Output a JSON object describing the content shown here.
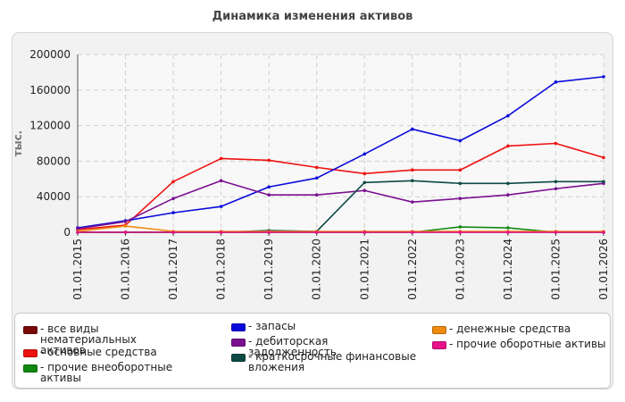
{
  "chart_data": {
    "type": "line",
    "title": "Динамика изменения активов",
    "xlabel": "",
    "ylabel": "тыс.",
    "categories": [
      "01.01.2015",
      "01.01.2016",
      "01.01.2017",
      "01.01.2018",
      "01.01.2019",
      "01.01.2020",
      "01.01.2021",
      "01.01.2022",
      "01.01.2023",
      "01.01.2024",
      "01.01.2025",
      "01.01.2026"
    ],
    "ylim": [
      0,
      200000
    ],
    "yticks": [
      "0",
      "40000",
      "80000",
      "120000",
      "160000",
      "200000"
    ],
    "grid": true,
    "legend_position": "bottom",
    "series": [
      {
        "name": "все виды нематериальных активов",
        "color": "#7a0a0a",
        "values": [
          0,
          0,
          0,
          0,
          0,
          0,
          0,
          0,
          0,
          0,
          0,
          0
        ]
      },
      {
        "name": "основные средства",
        "color": "#ee1111",
        "values": [
          3000,
          8000,
          57000,
          83000,
          81000,
          73000,
          66000,
          70000,
          70000,
          97000,
          100000,
          84000
        ]
      },
      {
        "name": "прочие внеоборотные активы",
        "color": "#118811",
        "values": [
          0,
          0,
          0,
          0,
          0,
          0,
          0,
          0,
          6000,
          5000,
          0,
          0
        ]
      },
      {
        "name": "запасы",
        "color": "#0a0adc",
        "values": [
          5000,
          13000,
          22000,
          29000,
          51000,
          61000,
          88000,
          116000,
          103000,
          131000,
          169000,
          175000
        ]
      },
      {
        "name": "дебиторская задолженность",
        "color": "#7a1090",
        "values": [
          4000,
          12000,
          38000,
          58000,
          42000,
          42000,
          47000,
          34000,
          38000,
          42000,
          49000,
          55000
        ]
      },
      {
        "name": "краткосрочные финансовые вложения",
        "color": "#0d4a45",
        "values": [
          0,
          0,
          0,
          0,
          2000,
          1000,
          56000,
          58000,
          55000,
          55000,
          57000,
          57000
        ]
      },
      {
        "name": "денежные средства",
        "color": "#f08a10",
        "values": [
          1000,
          7000,
          1000,
          1000,
          1000,
          1000,
          1000,
          1000,
          1000,
          1000,
          1000,
          1000
        ]
      },
      {
        "name": "прочие оборотные активы",
        "color": "#e8118a",
        "values": [
          0,
          0,
          0,
          0,
          0,
          0,
          0,
          0,
          0,
          0,
          0,
          0
        ]
      }
    ]
  }
}
